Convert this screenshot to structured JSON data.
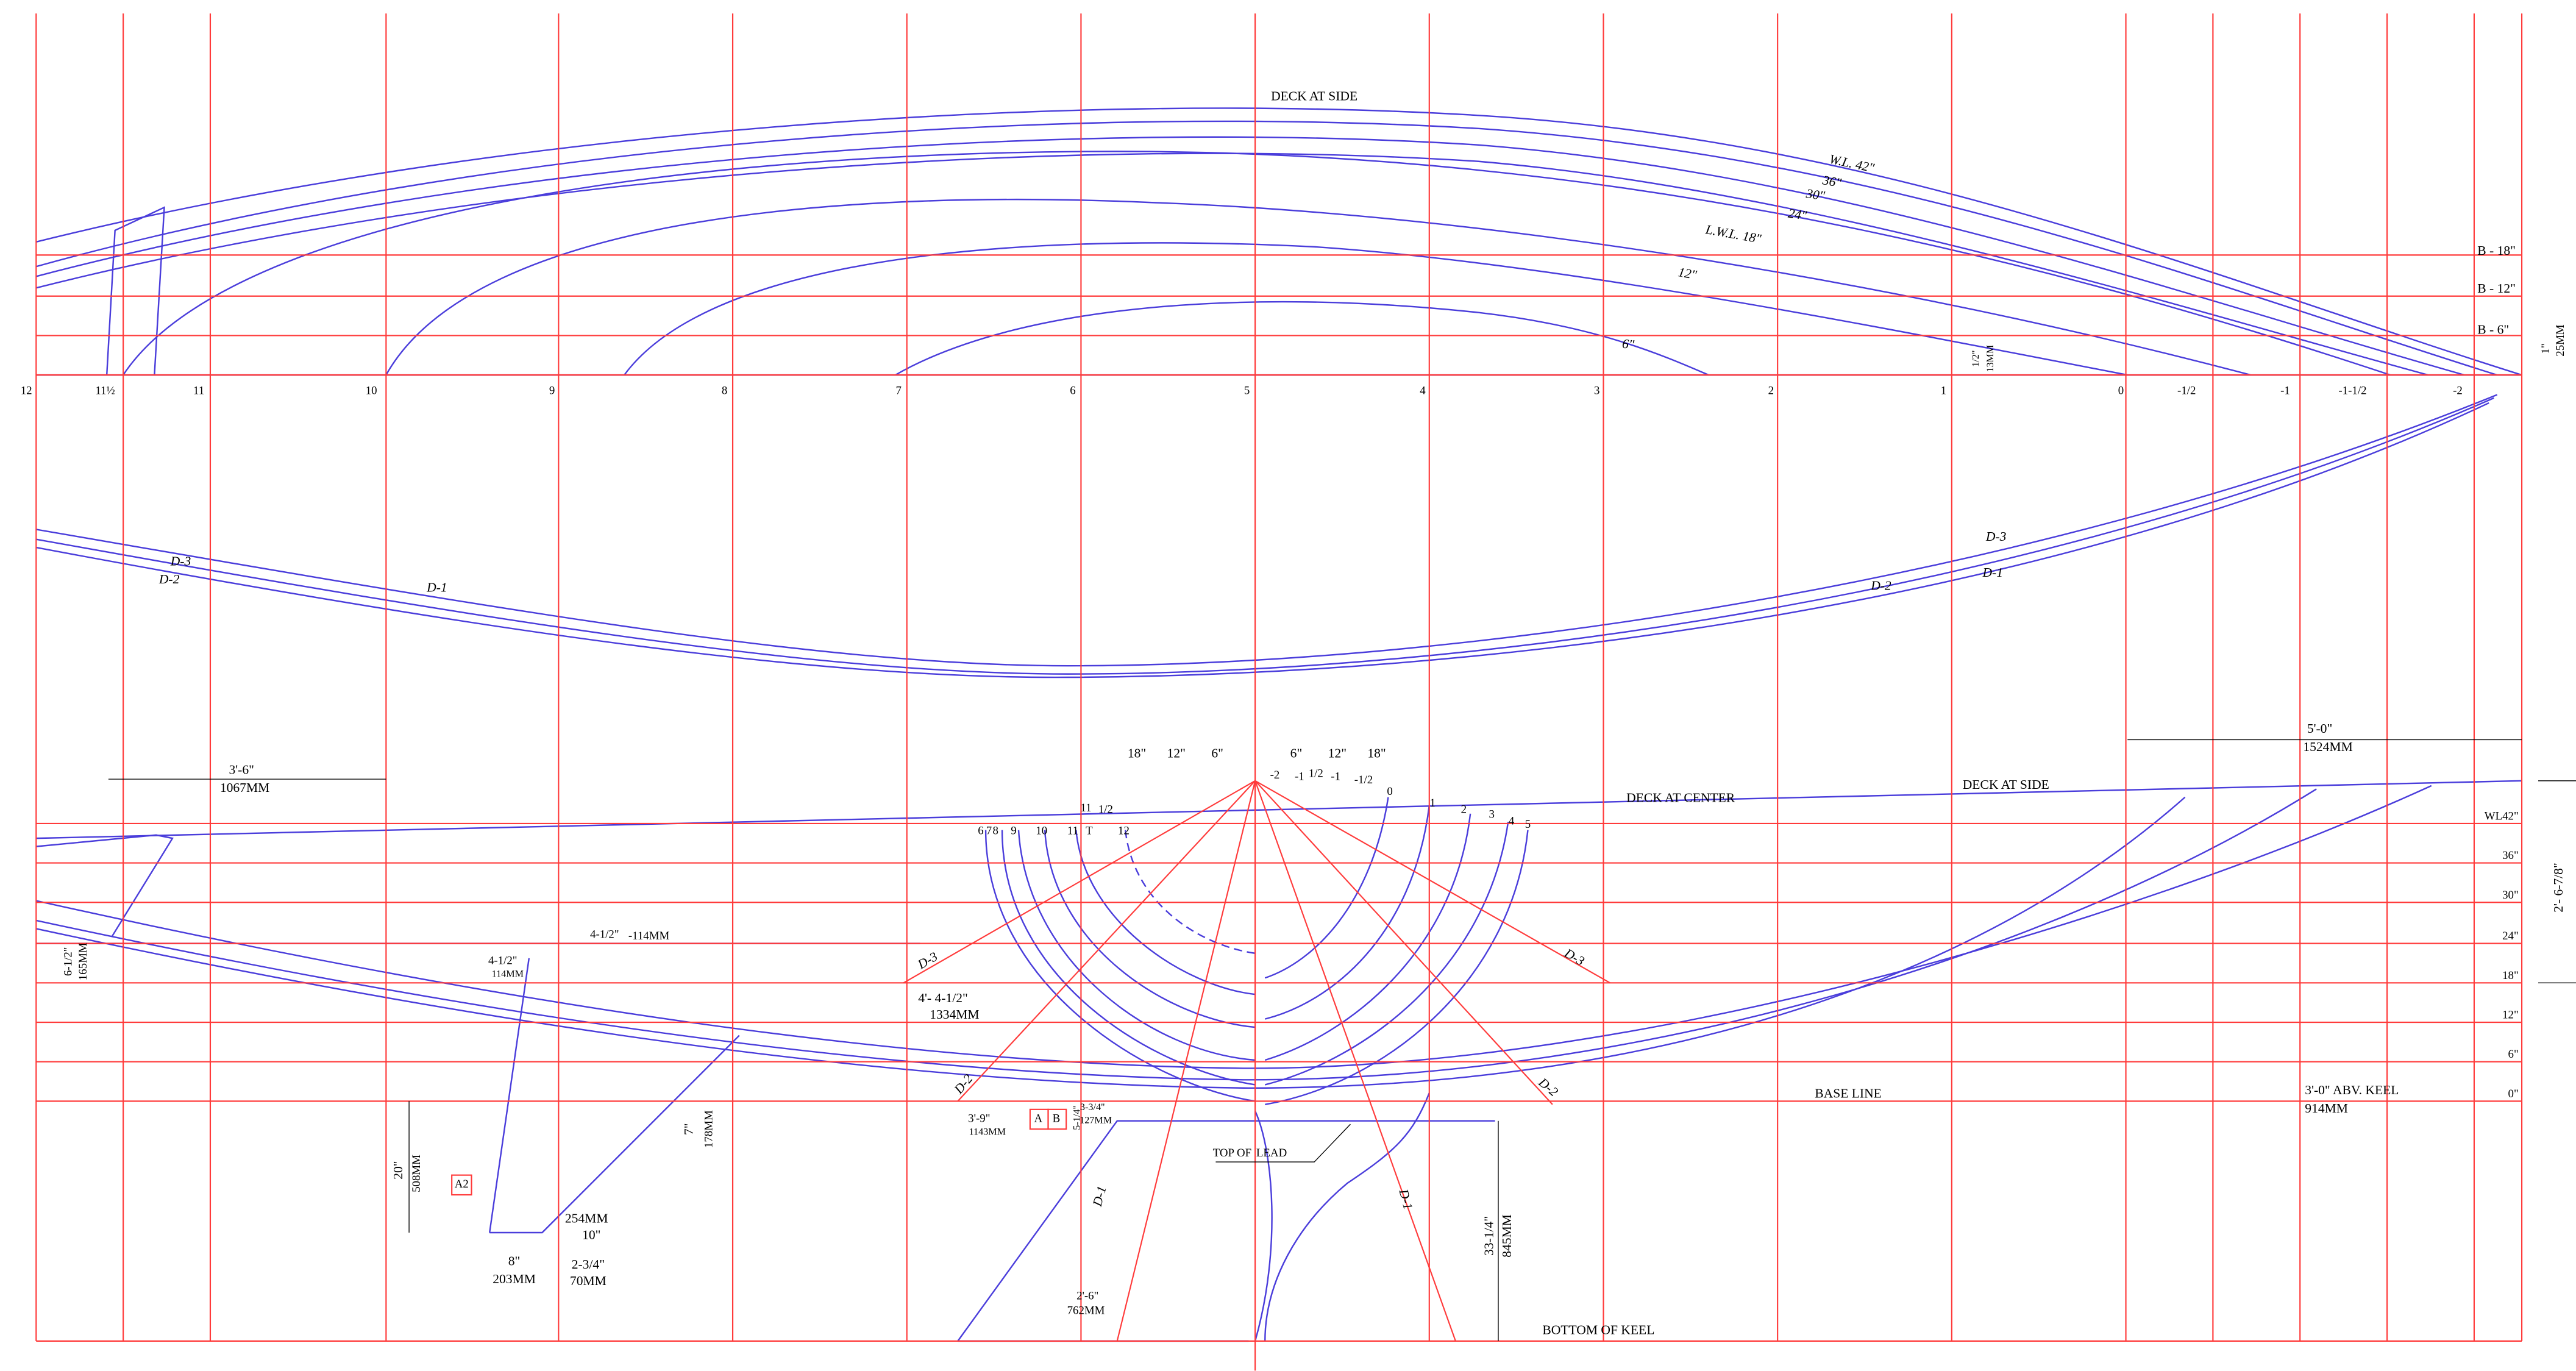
{
  "profile": {
    "deck_at_side": "DECK AT SIDE",
    "waterlines": [
      "W.L. 42\"",
      "36\"",
      "30\"",
      "24\"",
      "L.W.L. 18\"",
      "12\"",
      "6\""
    ],
    "buttocks": [
      "B - 18\"",
      "B - 12\"",
      "B - 6\""
    ],
    "dim_one": [
      "1\"",
      "25MM"
    ],
    "dim_half": [
      "1/2\"",
      "13MM"
    ]
  },
  "stations": [
    "12",
    "11½",
    "11",
    "10",
    "9",
    "8",
    "7",
    "6",
    "5",
    "4",
    "3",
    "2",
    "1",
    "0",
    "-1/2",
    "-1",
    "-1-1/2",
    "-2"
  ],
  "diagonals": {
    "left": [
      "D-3",
      "D-2",
      "D-1"
    ],
    "right": [
      "D-3",
      "D-2",
      "D-1"
    ]
  },
  "lower_profile": {
    "overhang": [
      "3'-6\"",
      "1067MM"
    ],
    "stern": [
      "5'-0\"",
      "1524MM"
    ],
    "deck_at_center": "DECK AT CENTER",
    "deck_at_side": "DECK AT SIDE",
    "waterlines": [
      "WL42\"",
      "36\"",
      "30\"",
      "24\"",
      "18\"",
      "12\"",
      "6\"",
      "0\""
    ],
    "freeboard": "2'- 6-7/8\"",
    "base_line": "BASE LINE",
    "above_keel": [
      "3'-0\" ABV. KEEL",
      "914MM"
    ],
    "bow_height": [
      "6-1/2\"",
      "165MM"
    ],
    "rudder_offset": [
      "4-1/2\"",
      "-114MM"
    ],
    "rudder_offset_2": [
      "4-1/2\"",
      "114MM"
    ],
    "keel_offset": [
      "4'- 4-1/2\"",
      "1334MM"
    ],
    "rudder_depth": [
      "20\"",
      "508MM"
    ],
    "rudder_box": "A2",
    "rudder_drop": [
      "7\"",
      "178MM"
    ],
    "rudder_chord": [
      "254MM",
      "10\""
    ],
    "rudder_foot": [
      "8\"",
      "203MM"
    ],
    "rudder_tip": [
      "2-3/4\"",
      "70MM"
    ],
    "keel_front": [
      "3'-9\"",
      "1143MM"
    ],
    "boxes": [
      "A",
      "B"
    ],
    "keel_top": [
      "5-1/4\"",
      "3-3/4\"",
      "127MM"
    ],
    "top_of_lead": [
      "TOP OF",
      "LEAD"
    ],
    "keel_depth": [
      "33-1/4\"",
      "845MM"
    ],
    "keel_bottom": [
      "2'-6\"",
      "762MM"
    ],
    "bottom_of_keel": "BOTTOM OF KEEL"
  },
  "body_plan": {
    "offsets": [
      "18\"",
      "12\"",
      "6\"",
      "6\"",
      "12\"",
      "18\""
    ],
    "diagonals": [
      "D-3",
      "D-3",
      "D-2",
      "D-2",
      "D-1",
      "D-1"
    ],
    "stations_fwd": [
      "-2",
      "-1",
      "1/2",
      "-1",
      "-1/2",
      "0",
      "1",
      "2",
      "3",
      "4",
      "5"
    ],
    "stations_aft": [
      "6",
      "7",
      "8",
      "9",
      "10",
      "11",
      "T",
      "12",
      "11",
      "1/2"
    ]
  }
}
